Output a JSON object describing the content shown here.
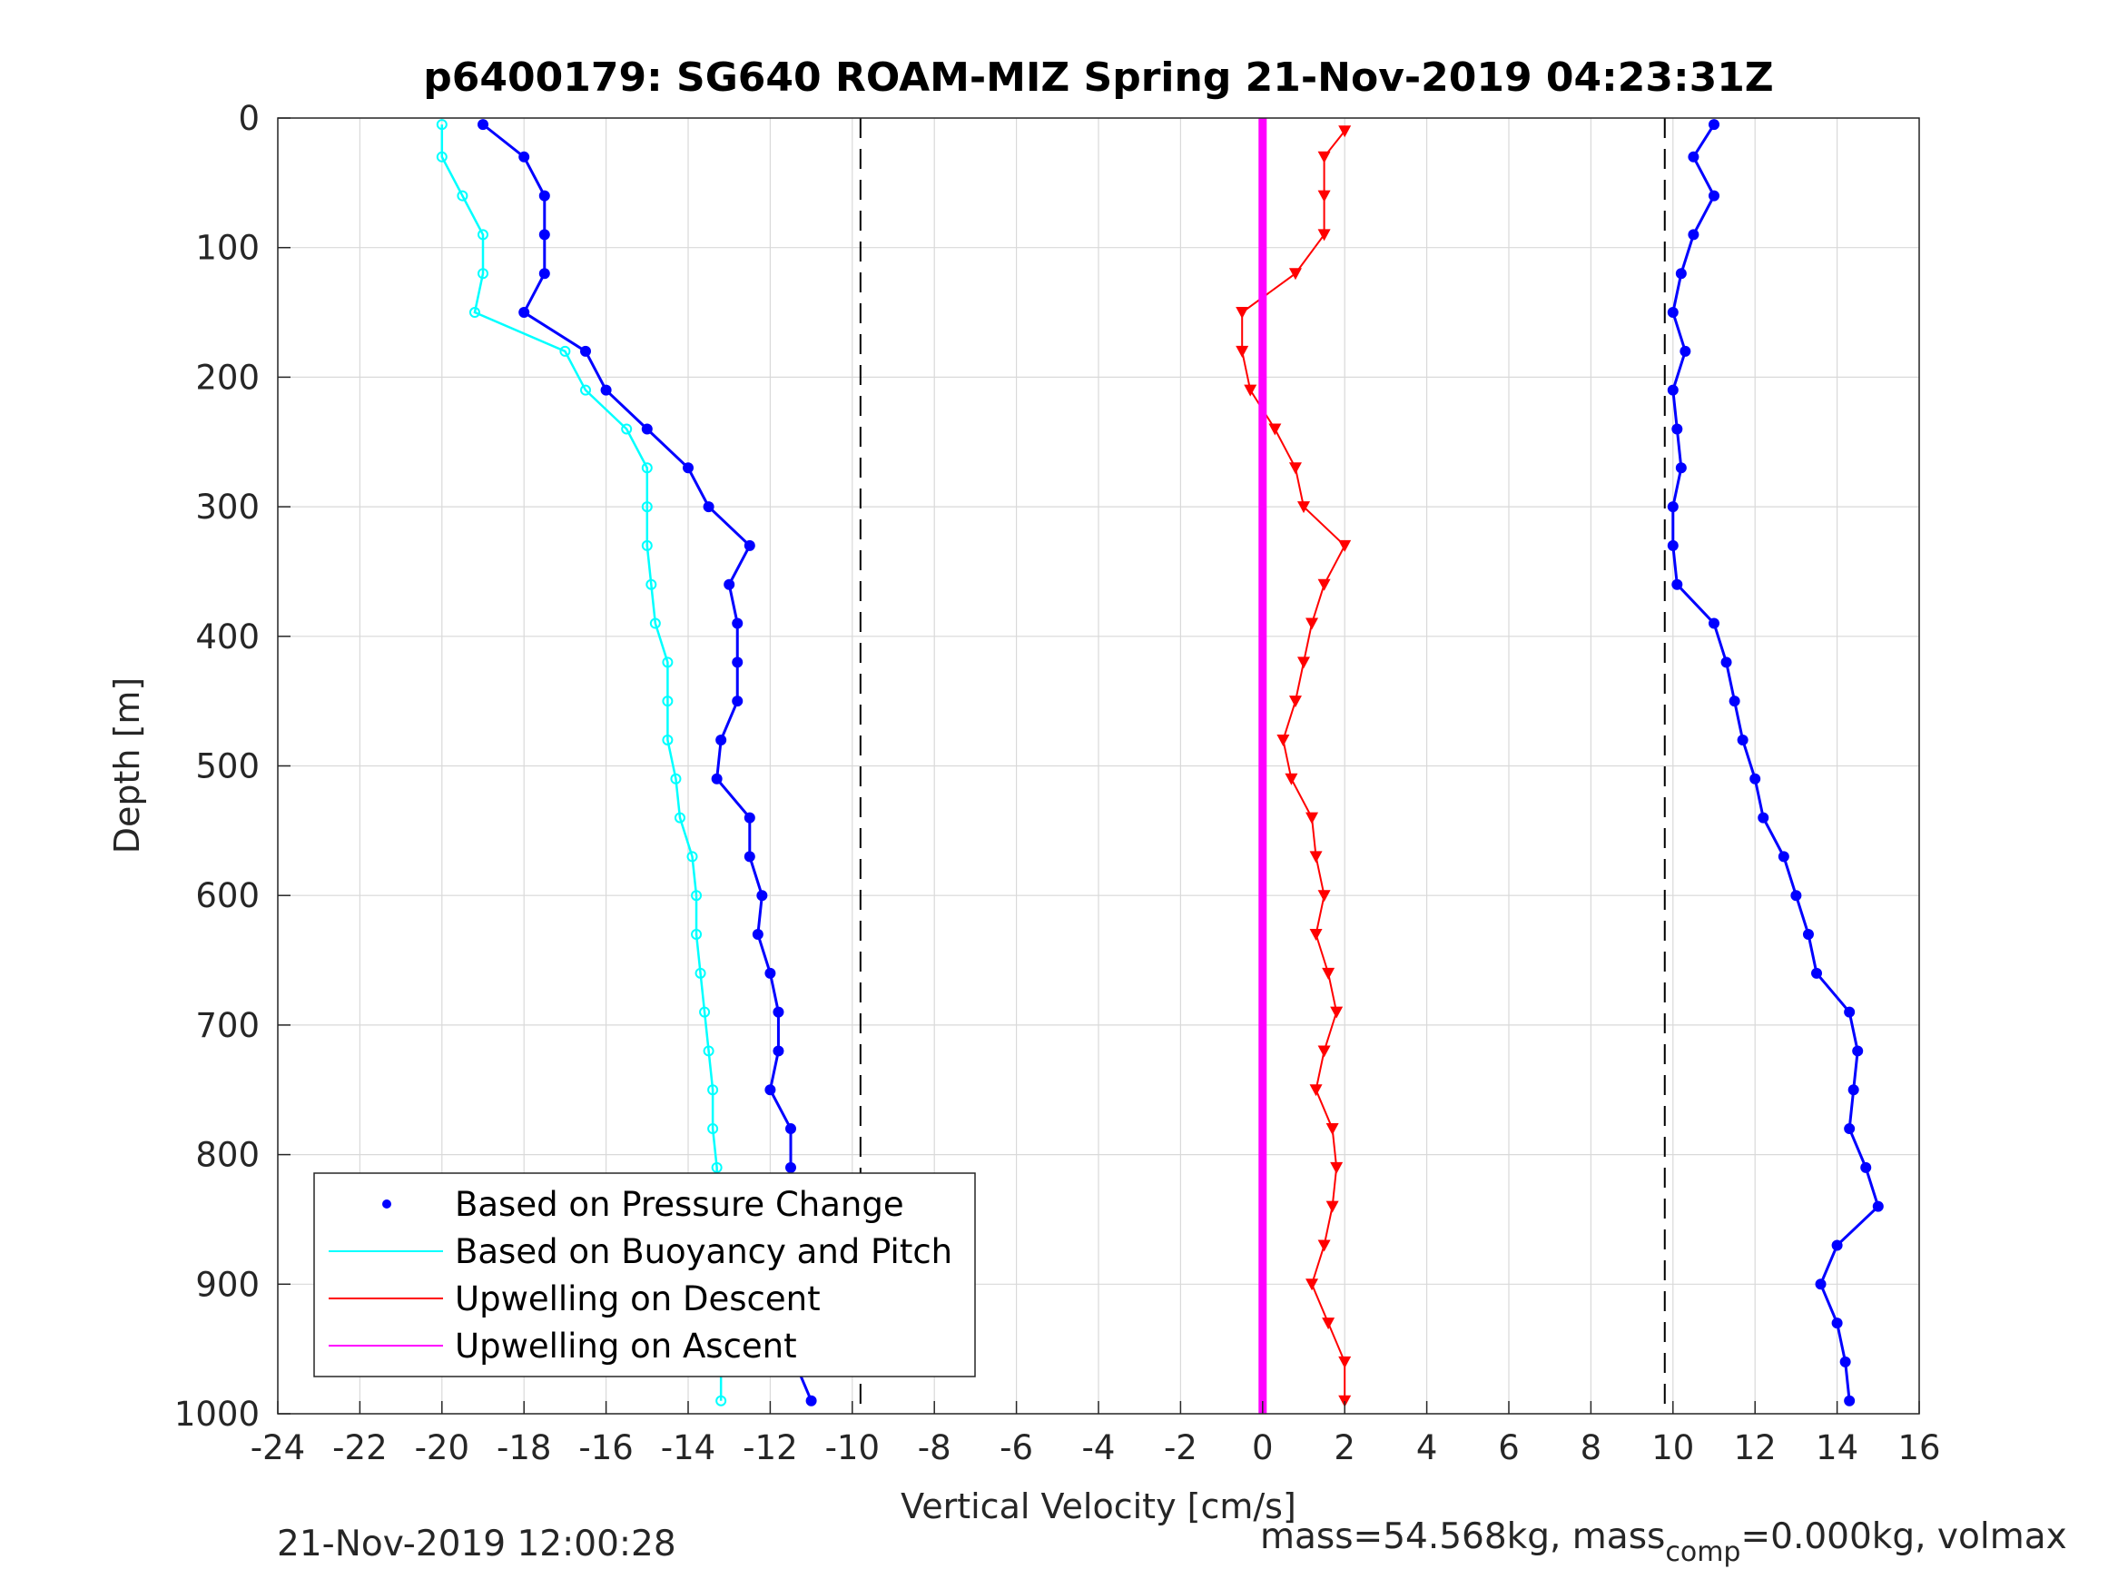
{
  "figure": {
    "title": "p6400179: SG640 ROAM-MIZ Spring 21-Nov-2019 04:23:31Z",
    "footer_left": "21-Nov-2019 12:00:28",
    "footer_right_prefix": "mass=54.568kg, mass",
    "footer_right_sub": "comp",
    "footer_right_suffix": "=0.000kg, volmax"
  },
  "chart_data": {
    "type": "scatter",
    "title": "p6400179: SG640 ROAM-MIZ Spring 21-Nov-2019 04:23:31Z",
    "xlabel": "Vertical Velocity [cm/s]",
    "ylabel": "Depth [m]",
    "xlim": [
      -24,
      16
    ],
    "ylim": [
      1000,
      0
    ],
    "y_reversed": true,
    "grid": true,
    "xticks": [
      -24,
      -22,
      -20,
      -18,
      -16,
      -14,
      -12,
      -10,
      -8,
      -6,
      -4,
      -2,
      0,
      2,
      4,
      6,
      8,
      10,
      12,
      14,
      16
    ],
    "yticks": [
      0,
      100,
      200,
      300,
      400,
      500,
      600,
      700,
      800,
      900,
      1000
    ],
    "reference_lines_x": [
      -9.8,
      9.8
    ],
    "legend": {
      "position": "bottom-left",
      "entries": [
        {
          "label": "Based on Pressure Change",
          "color": "#0000ff",
          "style": "dot"
        },
        {
          "label": "Based on Buoyancy and Pitch",
          "color": "#00ffff",
          "style": "line"
        },
        {
          "label": "Upwelling on Descent",
          "color": "#ff0000",
          "style": "line"
        },
        {
          "label": "Upwelling on Ascent",
          "color": "#ff00ff",
          "style": "line"
        }
      ]
    },
    "series": [
      {
        "name": "Based on Pressure Change",
        "color": "#0000ff",
        "segment": "descent",
        "depth": [
          5,
          30,
          60,
          90,
          120,
          150,
          180,
          210,
          240,
          270,
          300,
          330,
          360,
          390,
          420,
          450,
          480,
          510,
          540,
          570,
          600,
          630,
          660,
          690,
          720,
          750,
          780,
          810,
          840,
          870,
          900,
          930,
          960,
          990
        ],
        "values": [
          -19,
          -18,
          -17.5,
          -17.5,
          -17.5,
          -18,
          -16.5,
          -16,
          -15,
          -14,
          -13.5,
          -12.5,
          -13,
          -12.8,
          -12.8,
          -12.8,
          -13.2,
          -13.3,
          -12.5,
          -12.5,
          -12.2,
          -12.3,
          -12,
          -11.8,
          -11.8,
          -12,
          -11.5,
          -11.5,
          -11.6,
          -11.8,
          -11.9,
          -11.7,
          -11.4,
          -11
        ]
      },
      {
        "name": "Based on Pressure Change",
        "color": "#0000ff",
        "segment": "ascent",
        "depth": [
          5,
          30,
          60,
          90,
          120,
          150,
          180,
          210,
          240,
          270,
          300,
          330,
          360,
          390,
          420,
          450,
          480,
          510,
          540,
          570,
          600,
          630,
          660,
          690,
          720,
          750,
          780,
          810,
          840,
          870,
          900,
          930,
          960,
          990
        ],
        "values": [
          11,
          10.5,
          11,
          10.5,
          10.2,
          10,
          10.3,
          10,
          10.1,
          10.2,
          10,
          10,
          10.1,
          11,
          11.3,
          11.5,
          11.7,
          12,
          12.2,
          12.7,
          13,
          13.3,
          13.5,
          14.3,
          14.5,
          14.4,
          14.3,
          14.7,
          15,
          14,
          13.6,
          14,
          14.2,
          14.3
        ]
      },
      {
        "name": "Based on Buoyancy and Pitch",
        "color": "#00ffff",
        "segment": "descent",
        "depth": [
          5,
          30,
          60,
          90,
          120,
          150,
          180,
          210,
          240,
          270,
          300,
          330,
          360,
          390,
          420,
          450,
          480,
          510,
          540,
          570,
          600,
          630,
          660,
          690,
          720,
          750,
          780,
          810,
          840,
          870,
          900,
          930,
          960,
          990
        ],
        "values": [
          -20,
          -20,
          -19.5,
          -19,
          -19,
          -19.2,
          -17,
          -16.5,
          -15.5,
          -15,
          -15,
          -15,
          -14.9,
          -14.8,
          -14.5,
          -14.5,
          -14.5,
          -14.3,
          -14.2,
          -13.9,
          -13.8,
          -13.8,
          -13.7,
          -13.6,
          -13.5,
          -13.4,
          -13.4,
          -13.3,
          -13.3,
          -13.3,
          -13.2,
          -13.2,
          -13.2,
          -13.2
        ]
      },
      {
        "name": "Upwelling on Descent",
        "color": "#ff0000",
        "depth": [
          10,
          30,
          60,
          90,
          120,
          150,
          180,
          210,
          240,
          270,
          300,
          330,
          360,
          390,
          420,
          450,
          480,
          510,
          540,
          570,
          600,
          630,
          660,
          690,
          720,
          750,
          780,
          810,
          840,
          870,
          900,
          930,
          960,
          990
        ],
        "values": [
          2,
          1.5,
          1.5,
          1.5,
          0.8,
          -0.5,
          -0.5,
          -0.3,
          0.3,
          0.8,
          1,
          2,
          1.5,
          1.2,
          1,
          0.8,
          0.5,
          0.7,
          1.2,
          1.3,
          1.5,
          1.3,
          1.6,
          1.8,
          1.5,
          1.3,
          1.7,
          1.8,
          1.7,
          1.5,
          1.2,
          1.6,
          2,
          2
        ]
      },
      {
        "name": "Upwelling on Ascent",
        "color": "#ff00ff",
        "depth": [
          0,
          1000
        ],
        "values": [
          0,
          0
        ]
      }
    ]
  }
}
